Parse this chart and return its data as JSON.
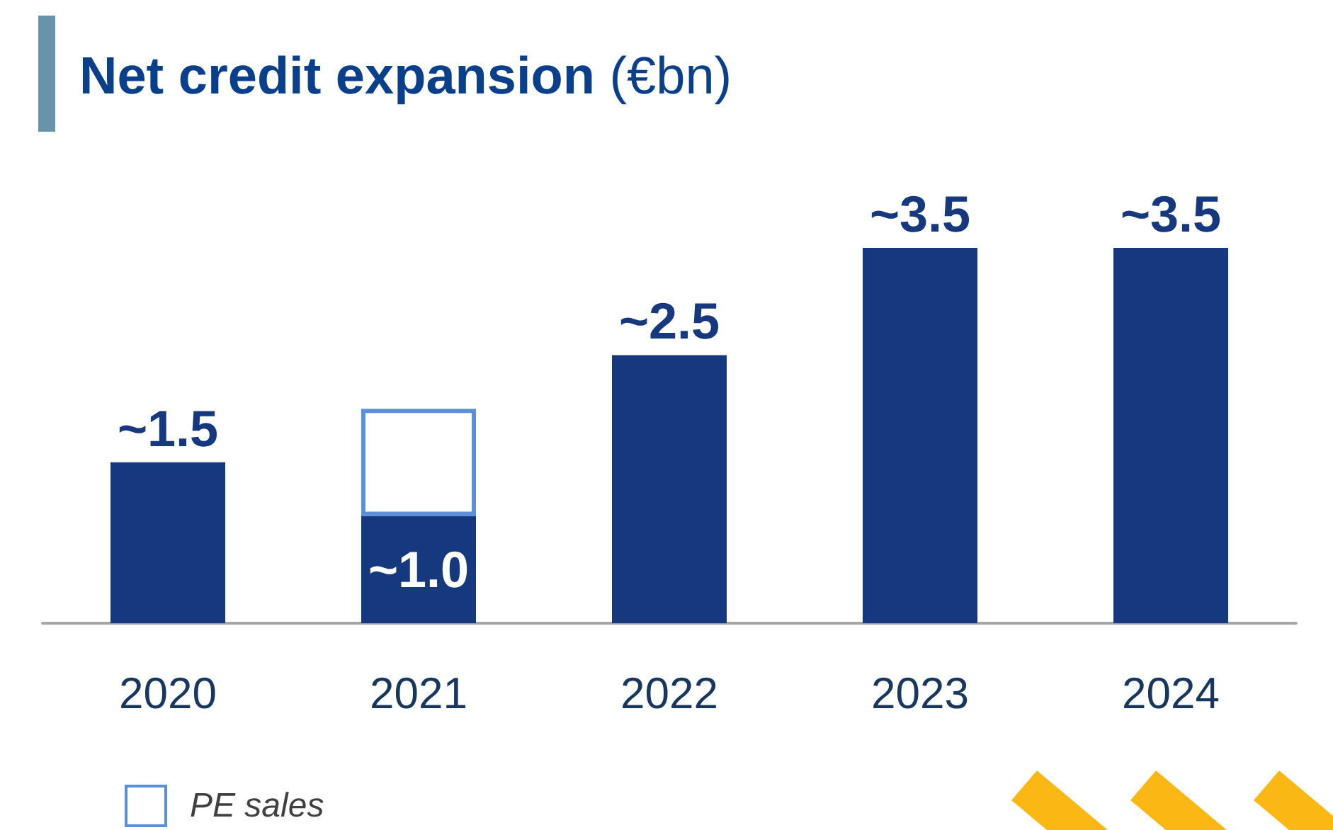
{
  "chart_data": {
    "type": "bar",
    "title": "Net credit expansion (€bn)",
    "categories": [
      "2020",
      "2021",
      "2022",
      "2023",
      "2024"
    ],
    "stacked": true,
    "legend": "bottom left",
    "series": [
      {
        "color": "#16387e",
        "values": [
          1.5,
          1.0,
          2.5,
          3.5,
          3.5
        ],
        "value_labels": [
          "~1.5",
          "~1.0",
          "~2.5",
          "~3.5",
          "~3.5"
        ]
      },
      {
        "name": "PE sales",
        "color": "#5b8fd9",
        "values": [
          null,
          1.0,
          null,
          null,
          null
        ]
      }
    ]
  }
}
